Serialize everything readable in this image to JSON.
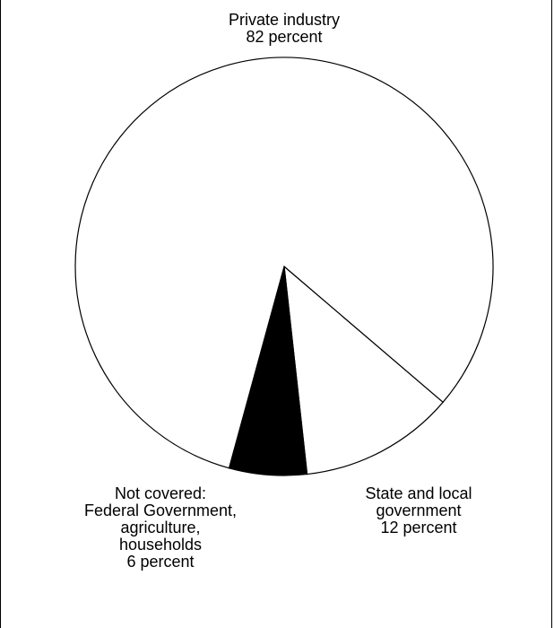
{
  "chart_data": {
    "type": "pie",
    "title": "",
    "slices": [
      {
        "label_lines": [
          "Private industry",
          "82 percent"
        ],
        "value": 82,
        "color": "#ffffff"
      },
      {
        "label_lines": [
          "State and local",
          "government",
          "12 percent"
        ],
        "value": 12,
        "color": "#ffffff"
      },
      {
        "label_lines": [
          "Not covered:",
          "Federal Government,",
          "agriculture,",
          "households",
          "6 percent"
        ],
        "value": 6,
        "color": "#000000"
      }
    ],
    "legend": "none"
  }
}
